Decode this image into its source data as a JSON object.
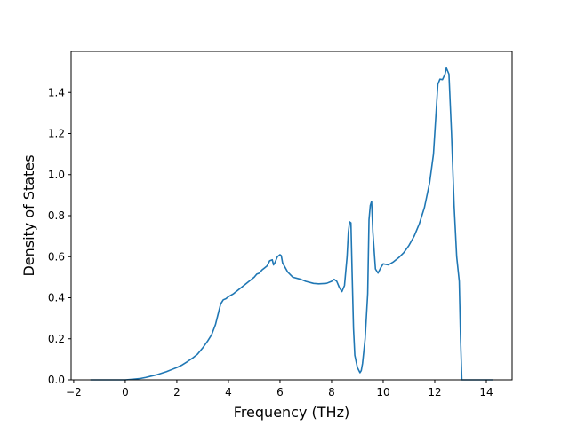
{
  "chart_data": {
    "type": "line",
    "xlabel": "Frequency (THz)",
    "ylabel": "Density of States",
    "xlim": [
      -2.1,
      15.0
    ],
    "ylim": [
      0.0,
      1.6
    ],
    "xticks": [
      -2,
      0,
      2,
      4,
      6,
      8,
      10,
      12,
      14
    ],
    "xtick_labels": [
      "−2",
      "0",
      "2",
      "4",
      "6",
      "8",
      "10",
      "12",
      "14"
    ],
    "yticks": [
      0.0,
      0.2,
      0.4,
      0.6,
      0.8,
      1.0,
      1.2,
      1.4
    ],
    "ytick_labels": [
      "0.0",
      "0.2",
      "0.4",
      "0.6",
      "0.8",
      "1.0",
      "1.2",
      "1.4"
    ],
    "grid": false,
    "legend": "none",
    "series": [
      {
        "color": "#1f77b4",
        "points": [
          [
            -1.35,
            0.0
          ],
          [
            -1.0,
            0.0
          ],
          [
            -0.5,
            0.0
          ],
          [
            0.0,
            0.0
          ],
          [
            0.3,
            0.003
          ],
          [
            0.6,
            0.007
          ],
          [
            0.8,
            0.012
          ],
          [
            1.0,
            0.018
          ],
          [
            1.2,
            0.024
          ],
          [
            1.4,
            0.032
          ],
          [
            1.6,
            0.04
          ],
          [
            1.8,
            0.05
          ],
          [
            2.0,
            0.06
          ],
          [
            2.2,
            0.072
          ],
          [
            2.4,
            0.088
          ],
          [
            2.6,
            0.105
          ],
          [
            2.8,
            0.125
          ],
          [
            3.0,
            0.155
          ],
          [
            3.2,
            0.19
          ],
          [
            3.35,
            0.22
          ],
          [
            3.5,
            0.27
          ],
          [
            3.6,
            0.32
          ],
          [
            3.7,
            0.37
          ],
          [
            3.8,
            0.39
          ],
          [
            3.9,
            0.395
          ],
          [
            4.0,
            0.405
          ],
          [
            4.2,
            0.42
          ],
          [
            4.4,
            0.44
          ],
          [
            4.6,
            0.46
          ],
          [
            4.8,
            0.48
          ],
          [
            5.0,
            0.5
          ],
          [
            5.1,
            0.515
          ],
          [
            5.2,
            0.52
          ],
          [
            5.3,
            0.535
          ],
          [
            5.4,
            0.545
          ],
          [
            5.5,
            0.555
          ],
          [
            5.6,
            0.58
          ],
          [
            5.7,
            0.585
          ],
          [
            5.75,
            0.56
          ],
          [
            5.8,
            0.57
          ],
          [
            5.9,
            0.6
          ],
          [
            6.0,
            0.61
          ],
          [
            6.05,
            0.605
          ],
          [
            6.1,
            0.57
          ],
          [
            6.3,
            0.525
          ],
          [
            6.5,
            0.5
          ],
          [
            6.8,
            0.49
          ],
          [
            7.0,
            0.48
          ],
          [
            7.3,
            0.47
          ],
          [
            7.5,
            0.468
          ],
          [
            7.8,
            0.47
          ],
          [
            8.0,
            0.48
          ],
          [
            8.1,
            0.49
          ],
          [
            8.2,
            0.48
          ],
          [
            8.3,
            0.45
          ],
          [
            8.4,
            0.43
          ],
          [
            8.5,
            0.46
          ],
          [
            8.6,
            0.6
          ],
          [
            8.65,
            0.72
          ],
          [
            8.7,
            0.77
          ],
          [
            8.75,
            0.765
          ],
          [
            8.8,
            0.5
          ],
          [
            8.85,
            0.25
          ],
          [
            8.9,
            0.12
          ],
          [
            9.0,
            0.06
          ],
          [
            9.1,
            0.035
          ],
          [
            9.15,
            0.045
          ],
          [
            9.2,
            0.08
          ],
          [
            9.3,
            0.2
          ],
          [
            9.4,
            0.42
          ],
          [
            9.45,
            0.78
          ],
          [
            9.5,
            0.85
          ],
          [
            9.55,
            0.87
          ],
          [
            9.6,
            0.72
          ],
          [
            9.7,
            0.54
          ],
          [
            9.8,
            0.52
          ],
          [
            9.9,
            0.545
          ],
          [
            10.0,
            0.565
          ],
          [
            10.2,
            0.56
          ],
          [
            10.4,
            0.575
          ],
          [
            10.6,
            0.595
          ],
          [
            10.8,
            0.62
          ],
          [
            11.0,
            0.655
          ],
          [
            11.2,
            0.7
          ],
          [
            11.4,
            0.76
          ],
          [
            11.6,
            0.84
          ],
          [
            11.8,
            0.96
          ],
          [
            11.95,
            1.1
          ],
          [
            12.05,
            1.3
          ],
          [
            12.12,
            1.44
          ],
          [
            12.2,
            1.465
          ],
          [
            12.3,
            1.463
          ],
          [
            12.4,
            1.49
          ],
          [
            12.45,
            1.52
          ],
          [
            12.55,
            1.49
          ],
          [
            12.65,
            1.2
          ],
          [
            12.75,
            0.85
          ],
          [
            12.85,
            0.6
          ],
          [
            12.95,
            0.48
          ],
          [
            13.0,
            0.2
          ],
          [
            13.05,
            0.0
          ],
          [
            13.5,
            0.0
          ],
          [
            14.0,
            0.0
          ],
          [
            14.25,
            0.0
          ]
        ]
      }
    ]
  }
}
